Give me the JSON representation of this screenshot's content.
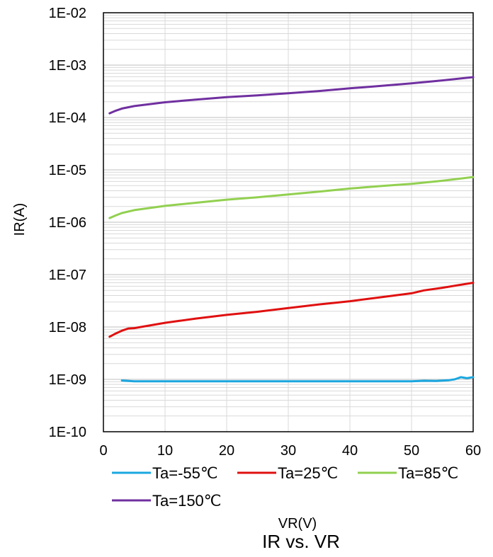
{
  "chart_data": {
    "type": "line",
    "title": "IR vs. VR",
    "xlabel": "VR(V)",
    "ylabel": "IR(A)",
    "xlim": [
      0,
      60
    ],
    "ylim": [
      1e-10,
      0.01
    ],
    "y_scale": "log",
    "grid": true,
    "legend_position": "bottom",
    "x_ticks": [
      "0",
      "10",
      "20",
      "30",
      "40",
      "50",
      "60"
    ],
    "y_ticks": [
      "1E-10",
      "1E-09",
      "1E-08",
      "1E-07",
      "1E-06",
      "1E-05",
      "1E-04",
      "1E-03",
      "1E-02"
    ],
    "series": [
      {
        "name": "Ta=-55℃",
        "color": "#1aa7e0",
        "x": [
          3,
          5,
          10,
          20,
          30,
          40,
          50,
          52,
          54,
          56,
          57,
          58,
          59,
          60
        ],
        "y": [
          9.5e-10,
          9.2e-10,
          9.2e-10,
          9.2e-10,
          9.2e-10,
          9.2e-10,
          9.2e-10,
          9.4e-10,
          9.3e-10,
          9.6e-10,
          1e-09,
          1.1e-09,
          1.05e-09,
          1.1e-09
        ]
      },
      {
        "name": "Ta=25℃",
        "color": "#e01010",
        "x": [
          1,
          2,
          3,
          4,
          5,
          10,
          15,
          20,
          25,
          30,
          35,
          40,
          45,
          50,
          52,
          55,
          60
        ],
        "y": [
          6.5e-09,
          7.5e-09,
          8.5e-09,
          9.3e-09,
          9.5e-09,
          1.2e-08,
          1.45e-08,
          1.7e-08,
          1.95e-08,
          2.3e-08,
          2.7e-08,
          3.1e-08,
          3.7e-08,
          4.4e-08,
          5e-08,
          5.6e-08,
          7e-08
        ]
      },
      {
        "name": "Ta=85℃",
        "color": "#92d050",
        "x": [
          1,
          2,
          3,
          5,
          10,
          15,
          20,
          25,
          30,
          35,
          40,
          45,
          50,
          55,
          60
        ],
        "y": [
          1.2e-06,
          1.35e-06,
          1.5e-06,
          1.7e-06,
          2.05e-06,
          2.35e-06,
          2.7e-06,
          3e-06,
          3.4e-06,
          3.85e-06,
          4.4e-06,
          4.9e-06,
          5.4e-06,
          6.2e-06,
          7.3e-06
        ]
      },
      {
        "name": "Ta=150℃",
        "color": "#7030a0",
        "x": [
          1,
          2,
          3,
          5,
          10,
          15,
          20,
          25,
          30,
          35,
          40,
          45,
          50,
          55,
          60
        ],
        "y": [
          0.00012,
          0.000135,
          0.000148,
          0.000165,
          0.000195,
          0.00022,
          0.000245,
          0.000265,
          0.00029,
          0.00032,
          0.00036,
          0.0004,
          0.00045,
          0.00051,
          0.00059
        ]
      }
    ]
  }
}
